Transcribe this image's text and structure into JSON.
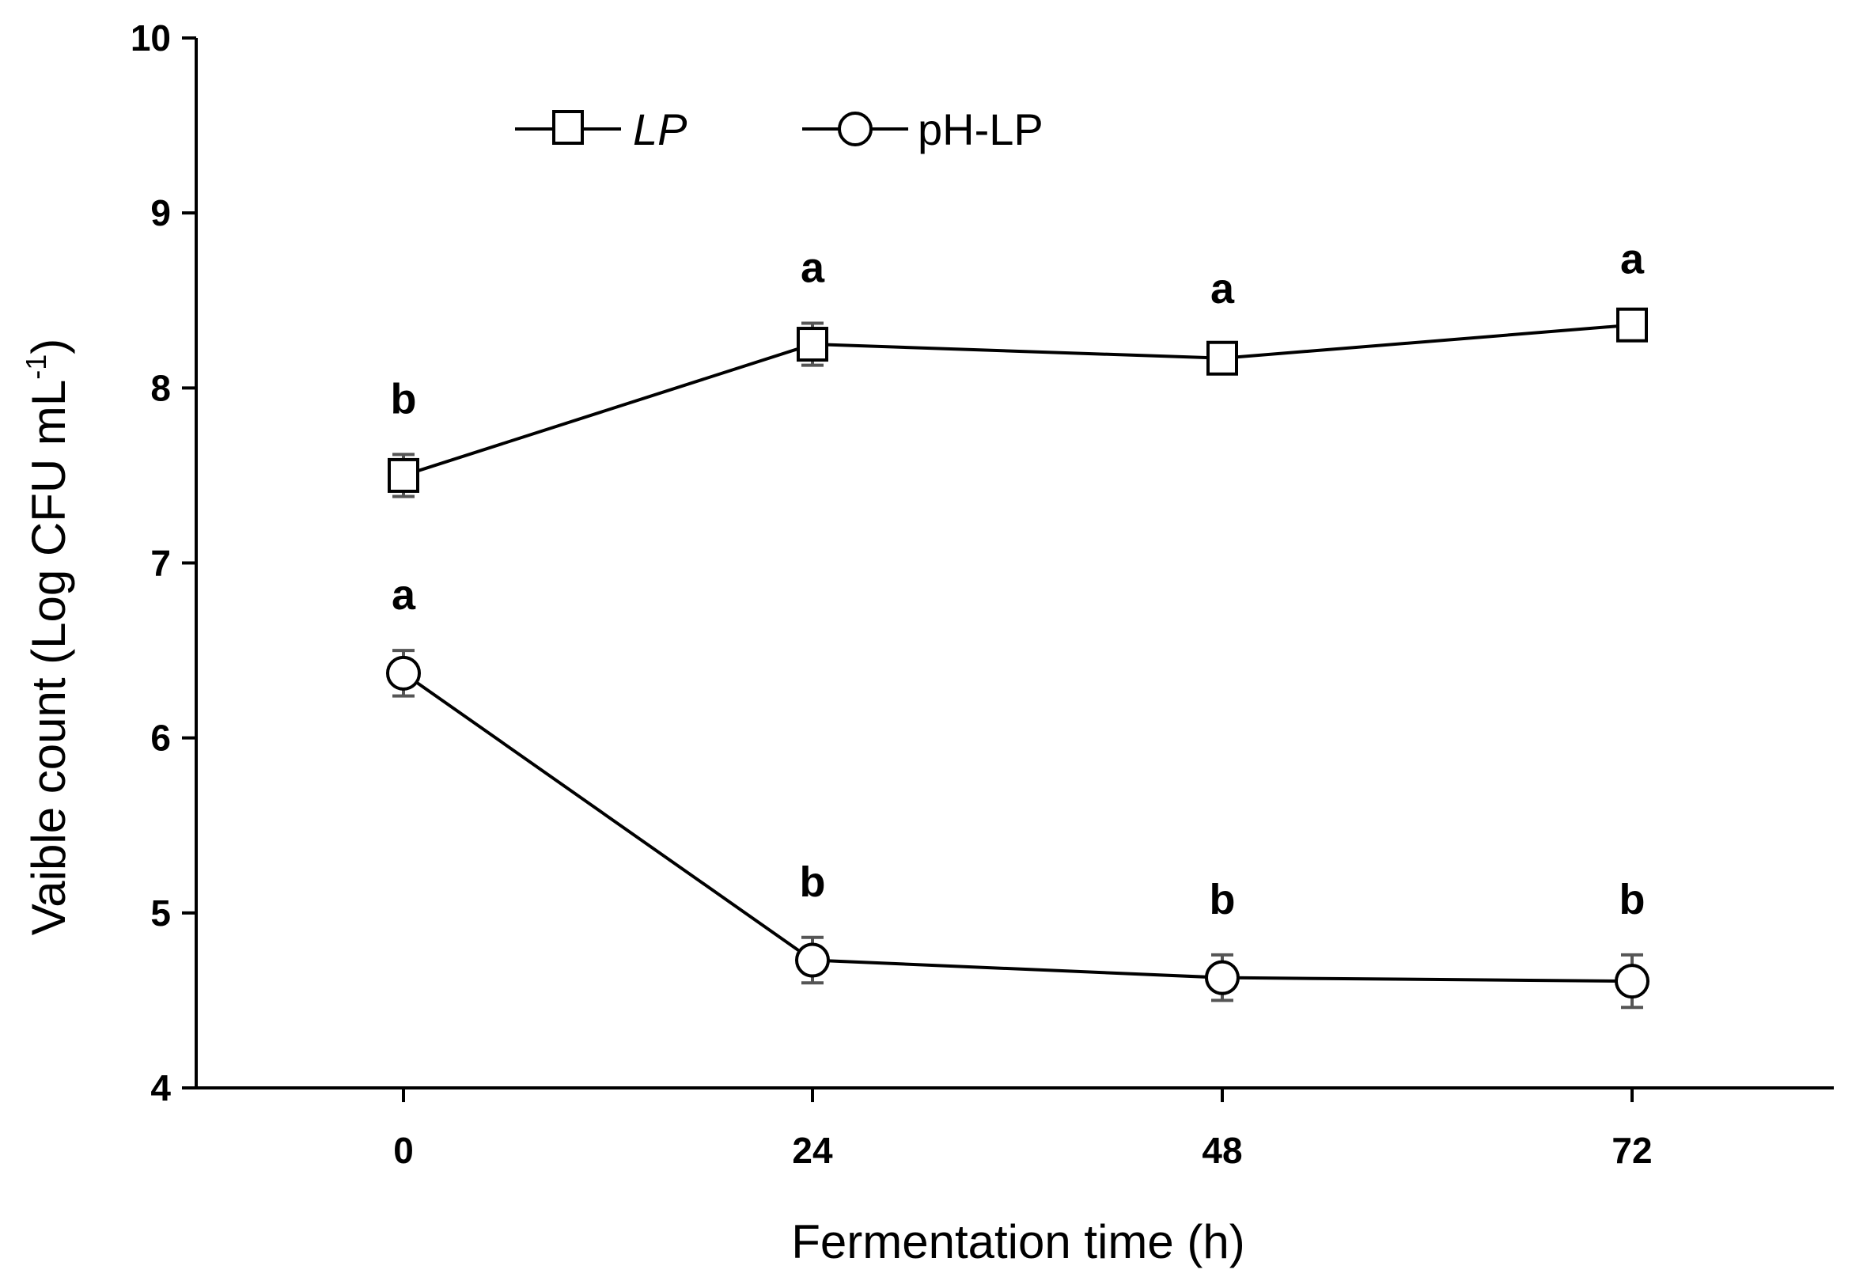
{
  "chart_data": {
    "type": "line",
    "xlabel": "Fermentation time (h)",
    "ylabel": "Vaible count (Log CFU mL",
    "ylabel_superscript": "-1",
    "ylabel_close": ")",
    "categories": [
      "0",
      "24",
      "48",
      "72"
    ],
    "x": [
      0,
      24,
      48,
      72
    ],
    "ylim": [
      4,
      10
    ],
    "yticks": [
      "4",
      "5",
      "6",
      "7",
      "8",
      "9",
      "10"
    ],
    "grid": false,
    "legend_position": "top-left",
    "series": [
      {
        "name": "LP",
        "marker": "square",
        "values": [
          7.5,
          8.25,
          8.17,
          8.36
        ],
        "error": [
          0.12,
          0.12,
          0.08,
          0.06
        ],
        "labels": [
          "b",
          "a",
          "a",
          "a"
        ]
      },
      {
        "name": "pH-LP",
        "marker": "circle",
        "values": [
          6.37,
          4.73,
          4.63,
          4.61
        ],
        "error": [
          0.13,
          0.13,
          0.13,
          0.15
        ],
        "labels": [
          "a",
          "b",
          "b",
          "b"
        ]
      }
    ]
  }
}
